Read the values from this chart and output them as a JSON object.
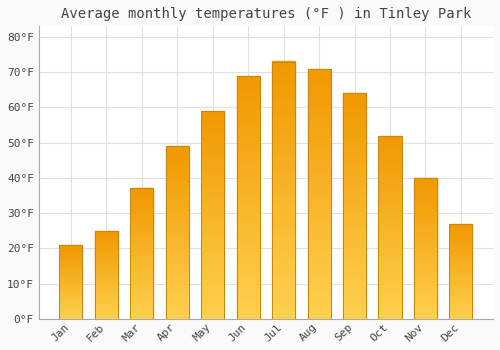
{
  "title": "Average monthly temperatures (°F ) in Tinley Park",
  "months": [
    "Jan",
    "Feb",
    "Mar",
    "Apr",
    "May",
    "Jun",
    "Jul",
    "Aug",
    "Sep",
    "Oct",
    "Nov",
    "Dec"
  ],
  "values": [
    21,
    25,
    37,
    49,
    59,
    69,
    73,
    71,
    64,
    52,
    40,
    27
  ],
  "bar_color_top": "#FFC533",
  "bar_color_bottom": "#F5A800",
  "bar_edge_color": "#C8860A",
  "background_color": "#FAFAFA",
  "plot_bg_color": "#FFFFFF",
  "grid_color": "#E0E0E0",
  "text_color": "#444444",
  "spine_color": "#AAAAAA",
  "ylim": [
    0,
    83
  ],
  "yticks": [
    0,
    10,
    20,
    30,
    40,
    50,
    60,
    70,
    80
  ],
  "title_fontsize": 10,
  "tick_fontsize": 8,
  "bar_width": 0.65
}
